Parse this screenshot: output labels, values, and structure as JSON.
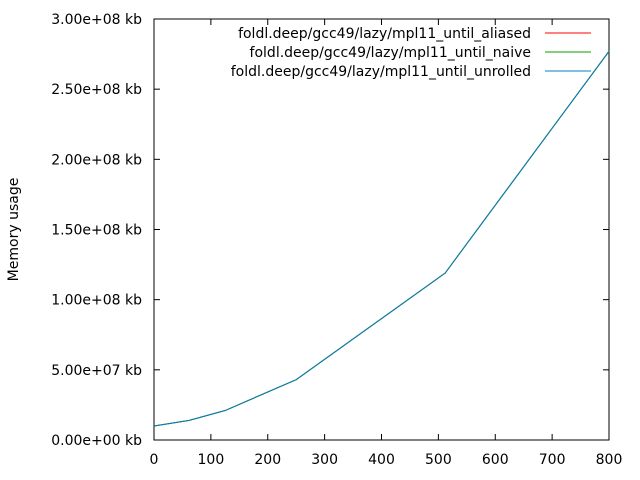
{
  "chart_data": {
    "type": "line",
    "title": "",
    "xlabel": "",
    "ylabel": "Memory usage",
    "xlim": [
      0,
      800
    ],
    "ylim": [
      0,
      300000000
    ],
    "x_ticks": [
      0,
      100,
      200,
      300,
      400,
      500,
      600,
      700,
      800
    ],
    "y_ticks": [
      0,
      50000000,
      100000000,
      150000000,
      200000000,
      250000000,
      300000000
    ],
    "x_tick_labels": [
      "0",
      "100",
      "200",
      "300",
      "400",
      "500",
      "600",
      "700",
      "800"
    ],
    "y_tick_labels": [
      "0.00e+00 kb",
      "5.00e+07 kb",
      "1.00e+08 kb",
      "1.50e+08 kb",
      "2.00e+08 kb",
      "2.50e+08 kb",
      "3.00e+08 kb"
    ],
    "grid": false,
    "legend_position": "top-right",
    "series": [
      {
        "name": "foldl.deep/gcc49/lazy/mpl11_until_aliased",
        "color": "#ff0000",
        "x": [
          0,
          62,
          125,
          250,
          512,
          800
        ],
        "y": [
          10000000,
          14000000,
          21000000,
          43000000,
          119000000,
          277000000
        ]
      },
      {
        "name": "foldl.deep/gcc49/lazy/mpl11_until_naive",
        "color": "#00a000",
        "x": [
          0,
          62,
          125,
          250,
          512,
          800
        ],
        "y": [
          10000000,
          14000000,
          21000000,
          43000000,
          119000000,
          277000000
        ]
      },
      {
        "name": "foldl.deep/gcc49/lazy/mpl11_until_unrolled",
        "color": "#0080c0",
        "x": [
          0,
          62,
          125,
          250,
          512,
          800
        ],
        "y": [
          10000000,
          14000000,
          21000000,
          43000000,
          119000000,
          277000000
        ]
      }
    ]
  }
}
